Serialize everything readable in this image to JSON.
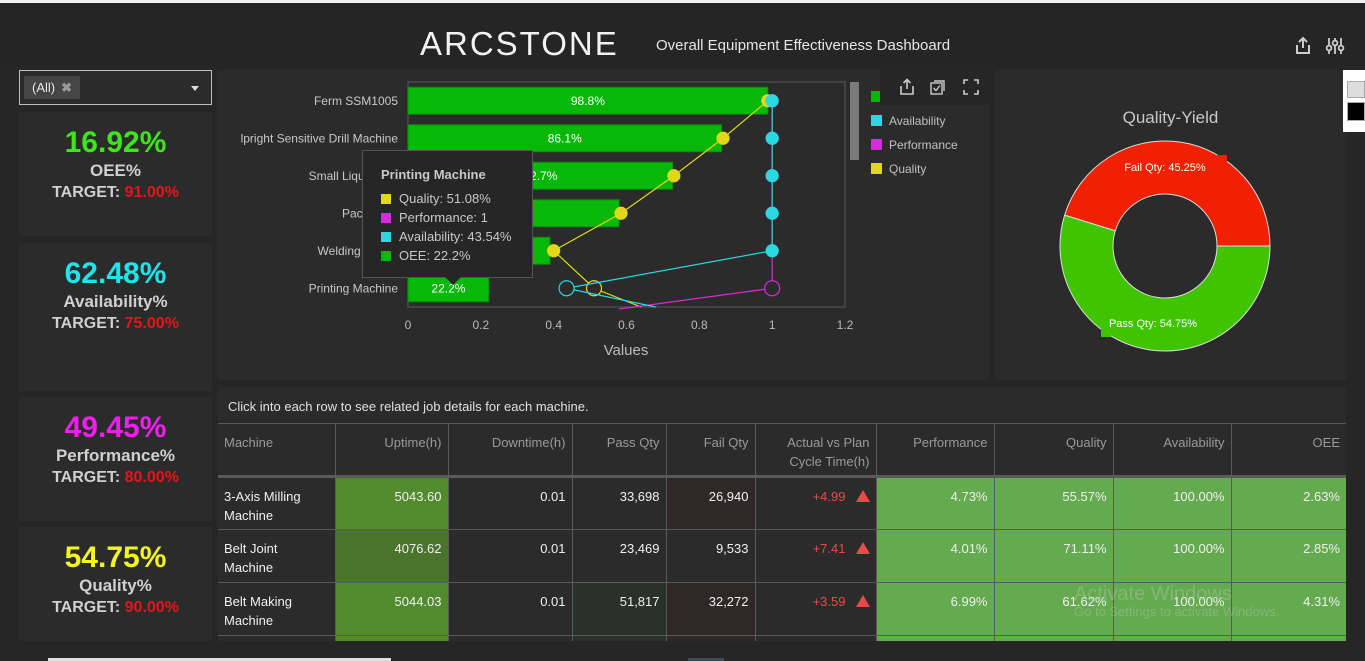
{
  "header": {
    "logo": "ARCSTONE",
    "title": "Overall Equipment Effectiveness Dashboard",
    "icons": [
      "share-icon",
      "settings-sliders-icon"
    ]
  },
  "filter": {
    "selected": "(All)",
    "clear_icon": "close-icon",
    "dropdown_icon": "chevron-down-icon"
  },
  "kpis": [
    {
      "value": "16.92%",
      "label": "OEE%",
      "target_label": "TARGET:",
      "target": "91.00%",
      "color": "#3fe51b"
    },
    {
      "value": "62.48%",
      "label": "Availability%",
      "target_label": "TARGET:",
      "target": "75.00%",
      "color": "#1ee4ec"
    },
    {
      "value": "49.45%",
      "label": "Performance%",
      "target_label": "TARGET:",
      "target": "80.00%",
      "color": "#f01ef0"
    },
    {
      "value": "54.75%",
      "label": "Quality%",
      "target_label": "TARGET:",
      "target": "90.00%",
      "color": "#f5f51e"
    }
  ],
  "chart_toolbar": {
    "icons": [
      "export-icon",
      "select-icon",
      "fullscreen-icon"
    ]
  },
  "chart_data": [
    {
      "type": "bar",
      "orientation": "horizontal",
      "title": "",
      "xlabel": "Values",
      "ylabel": "",
      "xlim": [
        0,
        1.2
      ],
      "x_ticks": [
        "0",
        "0.2",
        "0.4",
        "0.6",
        "0.8",
        "1",
        "1.2"
      ],
      "categories": [
        "Ferm SSM1005",
        "Upright Sensitive Drill Machine",
        "Small Liquid Packing Machine",
        "Packing Machine",
        "Welding Drill Machine",
        "Printing Machine"
      ],
      "category_labels": [
        "Ferm SSM1005",
        "lpright Sensitive Drill Machine",
        "Small Liquid Pac",
        "Packing M",
        "Welding Drill M",
        "Printing Machine"
      ],
      "series": [
        {
          "name": "OEE",
          "kind": "bar",
          "color": "#08b808",
          "values": [
            0.988,
            0.861,
            0.727,
            0.58,
            0.39,
            0.222
          ],
          "labels": [
            "98.8%",
            "86.1%",
            "72.7%",
            "",
            "",
            "22.2%"
          ]
        },
        {
          "name": "Availability",
          "kind": "line",
          "color": "#2ad9e0",
          "values": [
            1,
            1,
            1,
            1,
            1,
            0.4354
          ]
        },
        {
          "name": "Performance",
          "kind": "line",
          "color": "#d82cd8",
          "values": [
            1,
            1,
            1,
            1,
            1,
            1
          ]
        },
        {
          "name": "Quality",
          "kind": "line",
          "color": "#e0d818",
          "values": [
            0.988,
            0.865,
            0.73,
            0.585,
            0.4,
            0.5108
          ]
        }
      ],
      "legend": {
        "position": "right",
        "entries": [
          "OEE",
          "Availability",
          "Performance",
          "Quality"
        ]
      },
      "grid": false,
      "tooltip": {
        "title": "Printing Machine",
        "rows": [
          {
            "label": "Quality: 51.08%",
            "color": "#e0d818"
          },
          {
            "label": "Performance: 1",
            "color": "#d82cd8"
          },
          {
            "label": "Availability: 43.54%",
            "color": "#2ad9e0"
          },
          {
            "label": "OEE: 22.2%",
            "color": "#08b808"
          }
        ]
      }
    },
    {
      "type": "pie",
      "donut": true,
      "title": "Quality-Yield",
      "slices": [
        {
          "name": "Fail Qty",
          "value": 45.25,
          "label": "Fail Qty: 45.25%",
          "color": "#f02000"
        },
        {
          "name": "Pass Qty",
          "value": 54.75,
          "label": "Pass Qty: 54.75%",
          "color": "#40c400"
        }
      ]
    }
  ],
  "table": {
    "note": "Click into each row to see related job details for each machine.",
    "columns": [
      "Machine",
      "Uptime(h)",
      "Downtime(h)",
      "Pass Qty",
      "Fail Qty",
      "Actual vs Plan Cycle Time(h)",
      "Performance",
      "Quality",
      "Availability",
      "OEE"
    ],
    "rows": [
      {
        "machine": "3-Axis Milling Machine",
        "uptime": "5043.60",
        "downtime": "0.01",
        "pass_qty": "33,698",
        "fail_qty": "26,940",
        "cycle_diff": "+4.99",
        "performance": "4.73%",
        "quality": "55.57%",
        "availability": "100.00%",
        "oee": "2.63%"
      },
      {
        "machine": "Belt Joint Machine",
        "uptime": "4076.62",
        "downtime": "0.01",
        "pass_qty": "23,469",
        "fail_qty": "9,533",
        "cycle_diff": "+7.41",
        "performance": "4.01%",
        "quality": "71.11%",
        "availability": "100.00%",
        "oee": "2.85%"
      },
      {
        "machine": "Belt Making Machine",
        "uptime": "5044.03",
        "downtime": "0.01",
        "pass_qty": "51,817",
        "fail_qty": "32,272",
        "cycle_diff": "+3.59",
        "performance": "6.99%",
        "quality": "61.62%",
        "availability": "100.00%",
        "oee": "4.31%"
      }
    ]
  },
  "watermark": {
    "line1": "Activate Windows",
    "line2": "Go to Settings to activate Windows."
  }
}
